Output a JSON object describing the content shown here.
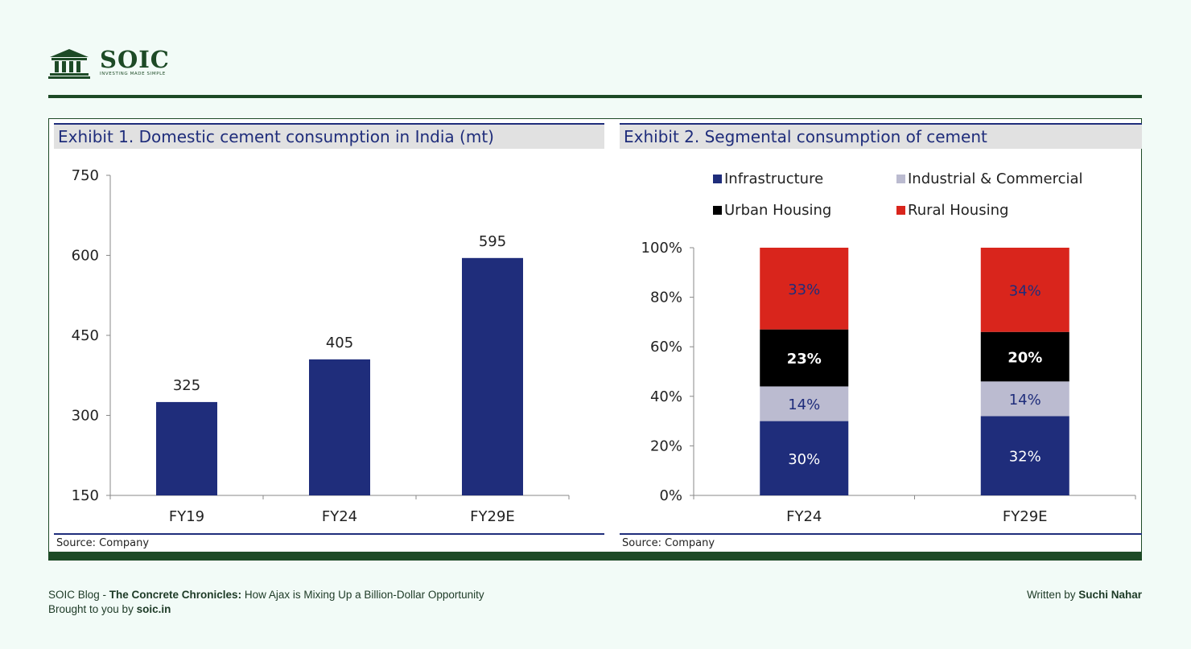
{
  "brand": {
    "name": "SOIC",
    "tagline": "INVESTING MADE SIMPLE"
  },
  "exhibit1": {
    "title": "Exhibit 1. Domestic cement consumption in India (mt)",
    "source": "Source: Company"
  },
  "exhibit2": {
    "title": "Exhibit 2. Segmental consumption of cement",
    "source": "Source: Company"
  },
  "chart_data": [
    {
      "type": "bar",
      "title": "Exhibit 1. Domestic cement consumption in India (mt)",
      "categories": [
        "FY19",
        "FY24",
        "FY29E"
      ],
      "values": [
        325,
        405,
        595
      ],
      "data_labels": [
        "325",
        "405",
        "595"
      ],
      "ylim": [
        150,
        750
      ],
      "yticks": [
        150,
        300,
        450,
        600,
        750
      ],
      "color": "#1f2d7b",
      "grid": false
    },
    {
      "type": "bar",
      "stacked": true,
      "title": "Exhibit 2. Segmental consumption of cement",
      "categories": [
        "FY24",
        "FY29E"
      ],
      "series": [
        {
          "name": "Infrastructure",
          "values": [
            30,
            32
          ],
          "labels": [
            "30%",
            "32%"
          ],
          "color": "#1f2d7b",
          "label_color": "#ffffff"
        },
        {
          "name": "Industrial & Commercial",
          "values": [
            14,
            14
          ],
          "labels": [
            "14%",
            "14%"
          ],
          "color": "#bbbbd0",
          "label_color": "#1f2d7b"
        },
        {
          "name": "Urban Housing",
          "values": [
            23,
            20
          ],
          "labels": [
            "23%",
            "20%"
          ],
          "color": "#000000",
          "label_color": "#ffffff"
        },
        {
          "name": "Rural Housing",
          "values": [
            33,
            34
          ],
          "labels": [
            "33%",
            "34%"
          ],
          "color": "#d9251c",
          "label_color": "#1f2d7b"
        }
      ],
      "ylim": [
        0,
        100
      ],
      "yticks": [
        "0%",
        "20%",
        "40%",
        "60%",
        "80%",
        "100%"
      ],
      "legend": "top",
      "grid": false
    }
  ],
  "footer": {
    "blog_prefix": "SOIC Blog - ",
    "blog_title": "The Concrete Chronicles:",
    "blog_subtitle": " How Ajax is Mixing Up a Billion-Dollar Opportunity",
    "brought_prefix": "Brought to you by ",
    "brought_site": "soic.in",
    "written_prefix": "Written by ",
    "author": "Suchi Nahar"
  }
}
